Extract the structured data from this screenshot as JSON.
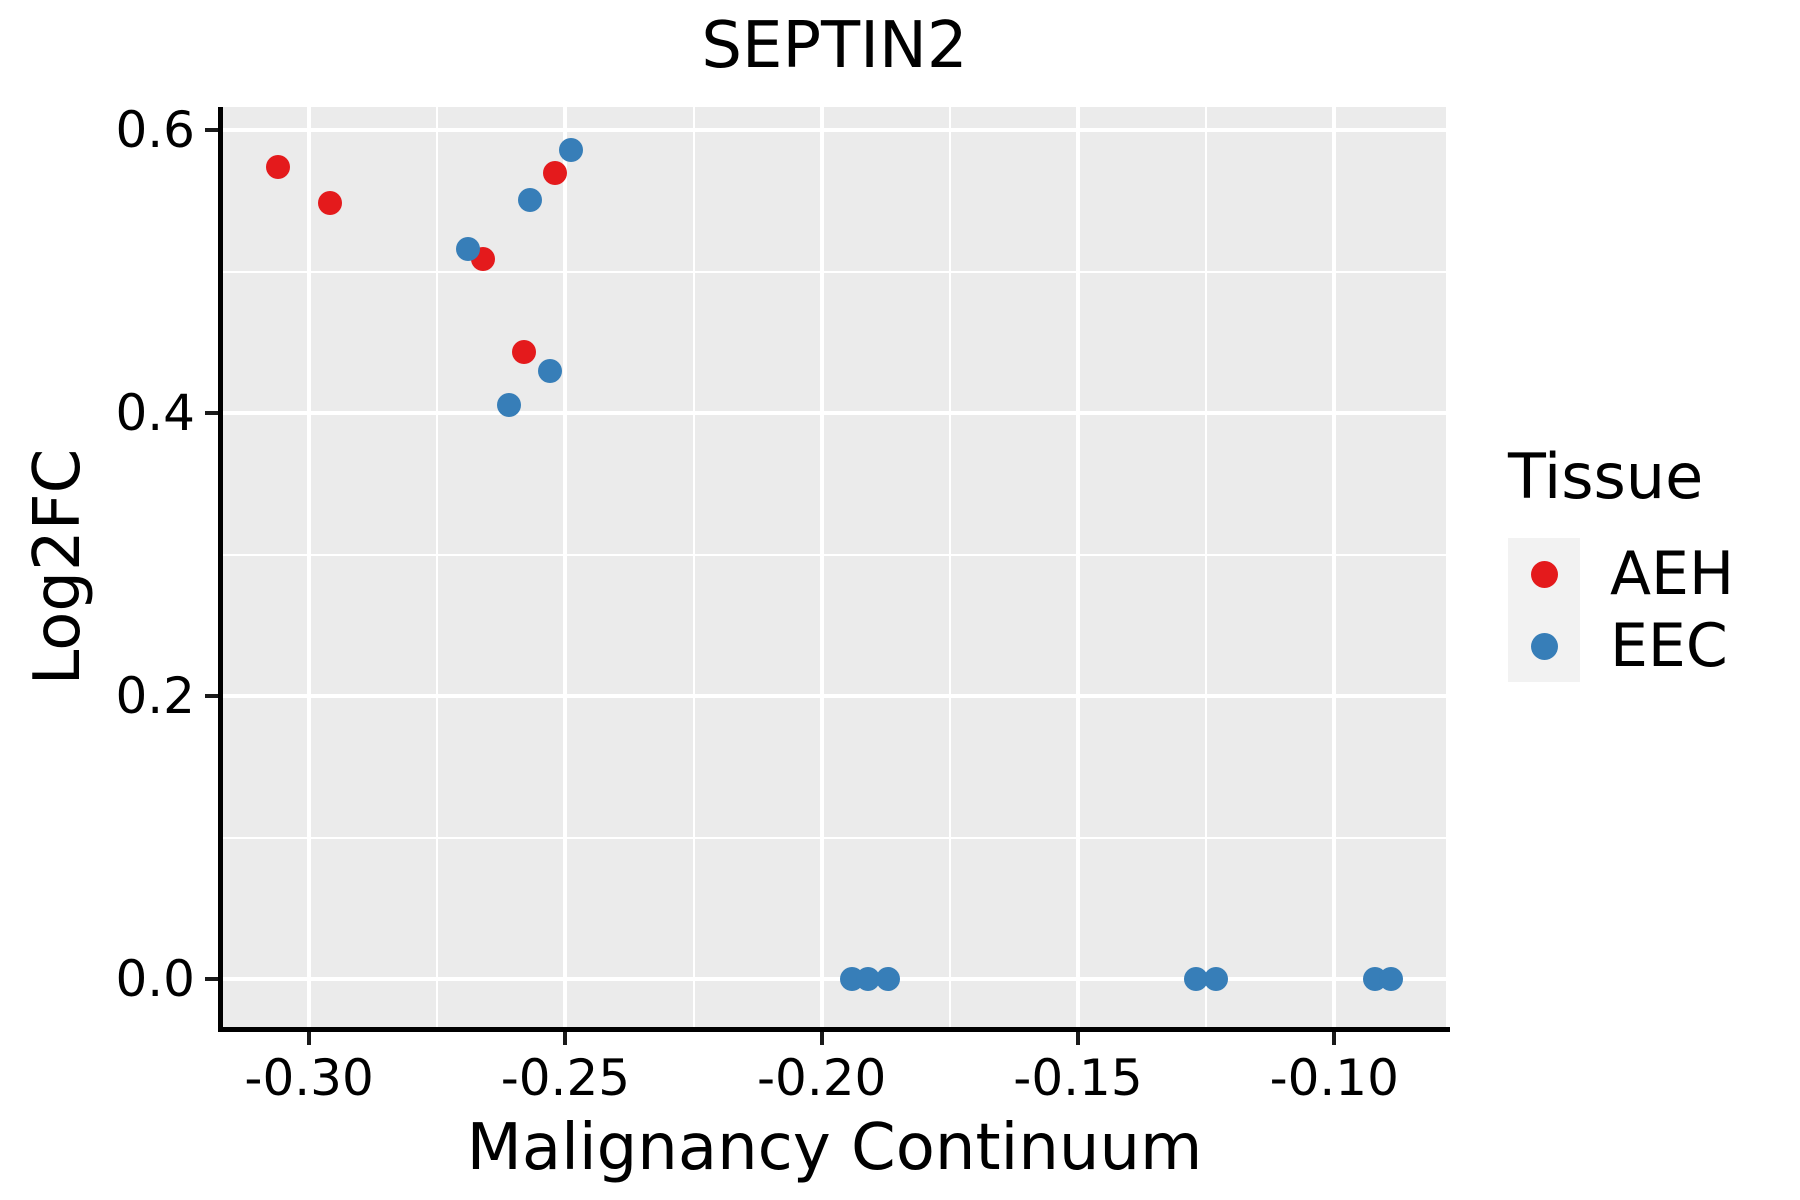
{
  "chart_data": {
    "type": "scatter",
    "title": "SEPTIN2",
    "xlabel": "Malignancy Continuum",
    "ylabel": "Log2FC",
    "xlim": [
      -0.3168,
      -0.0782
    ],
    "ylim": [
      -0.034,
      0.6166
    ],
    "grid": true,
    "legend_position": "right",
    "x_ticks": [
      -0.3,
      -0.25,
      -0.2,
      -0.15,
      -0.1
    ],
    "x_tick_labels": [
      "-0.30",
      "-0.25",
      "-0.20",
      "-0.15",
      "-0.10"
    ],
    "x_minor_ticks": [
      -0.275,
      -0.225,
      -0.175,
      -0.125
    ],
    "y_ticks": [
      0.0,
      0.2,
      0.4,
      0.6
    ],
    "y_tick_labels": [
      "0.0",
      "0.2",
      "0.4",
      "0.6"
    ],
    "y_minor_ticks": [
      0.1,
      0.3,
      0.5
    ],
    "legend": {
      "title": "Tissue",
      "entries": [
        {
          "label": "AEH",
          "color": "#E41A1C"
        },
        {
          "label": "EEC",
          "color": "#377EB8"
        }
      ]
    },
    "series": [
      {
        "name": "AEH",
        "color": "#E41A1C",
        "points": [
          [
            -0.306,
            0.574
          ],
          [
            -0.296,
            0.549
          ],
          [
            -0.252,
            0.57
          ],
          [
            -0.266,
            0.509
          ],
          [
            -0.258,
            0.443
          ]
        ]
      },
      {
        "name": "EEC",
        "color": "#377EB8",
        "points": [
          [
            -0.249,
            0.586
          ],
          [
            -0.257,
            0.551
          ],
          [
            -0.269,
            0.516
          ],
          [
            -0.253,
            0.43
          ],
          [
            -0.261,
            0.406
          ],
          [
            -0.194,
            0.0
          ],
          [
            -0.191,
            0.0
          ],
          [
            -0.187,
            0.0
          ],
          [
            -0.127,
            0.0
          ],
          [
            -0.123,
            0.0
          ],
          [
            -0.092,
            0.0
          ],
          [
            -0.089,
            0.0
          ]
        ]
      }
    ],
    "colors": {
      "panel_background": "#EBEBEB",
      "gridline": "#FFFFFF",
      "axis_line": "#000000",
      "text": "#000000",
      "legend_key_background": "#F2F2F2"
    }
  }
}
